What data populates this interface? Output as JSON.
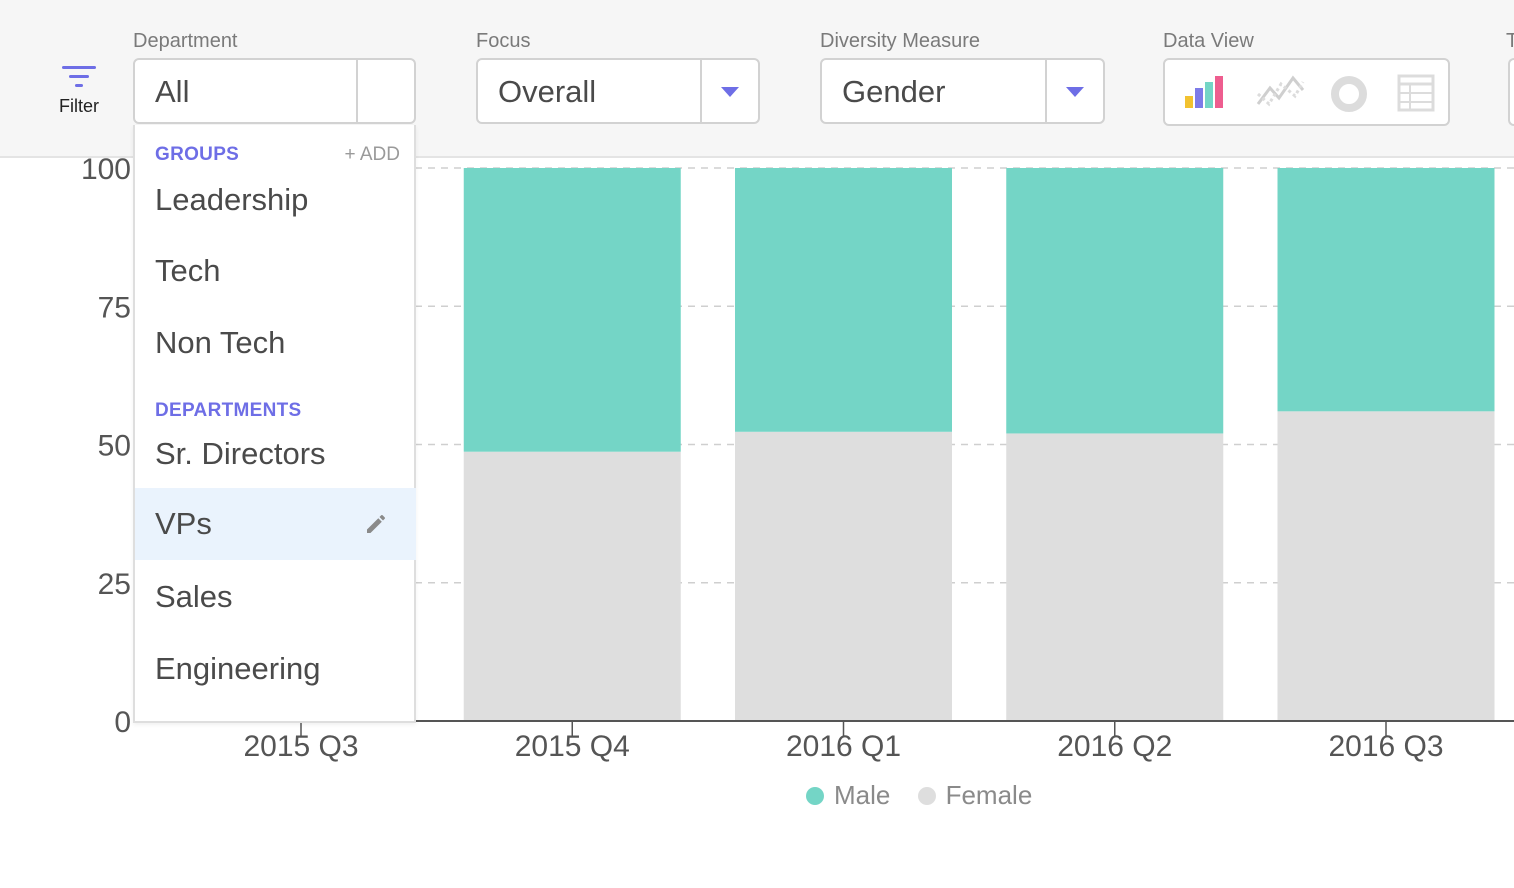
{
  "toolbar": {
    "filter_label": "Filter",
    "department": {
      "label": "Department",
      "value": "All"
    },
    "focus": {
      "label": "Focus",
      "value": "Overall"
    },
    "diversity": {
      "label": "Diversity Measure",
      "value": "Gender"
    },
    "data_view": {
      "label": "Data View",
      "icons": [
        "bar-chart-icon",
        "line-chart-icon",
        "donut-chart-icon",
        "table-icon"
      ],
      "selected": "bar-chart-icon"
    },
    "next_label": "T"
  },
  "dropdown": {
    "groups_heading": "GROUPS",
    "add_label": "+ ADD",
    "groups": [
      "Leadership",
      "Tech",
      "Non Tech"
    ],
    "departments_heading": "DEPARTMENTS",
    "departments": [
      "Sr. Directors",
      "VPs",
      "Sales",
      "Engineering"
    ],
    "hovered": "VPs"
  },
  "colors": {
    "accent": "#6e6ee6",
    "male": "#74d5c6",
    "female": "#dedede"
  },
  "chart_data": {
    "type": "bar",
    "stacked": true,
    "categories": [
      "2015 Q3",
      "2015 Q4",
      "2016 Q1",
      "2016 Q2",
      "2016 Q3"
    ],
    "series": [
      {
        "name": "Female",
        "values": [
          null,
          48.7,
          52.3,
          52.0,
          56.0
        ]
      },
      {
        "name": "Male",
        "values": [
          null,
          51.3,
          47.7,
          48.0,
          44.0
        ]
      }
    ],
    "ylim": [
      0,
      100
    ],
    "yticks": [
      "0",
      "25",
      "50",
      "75",
      "100"
    ],
    "grid": true,
    "legend": "bottom-center",
    "legend_entries": [
      "Male",
      "Female"
    ]
  }
}
